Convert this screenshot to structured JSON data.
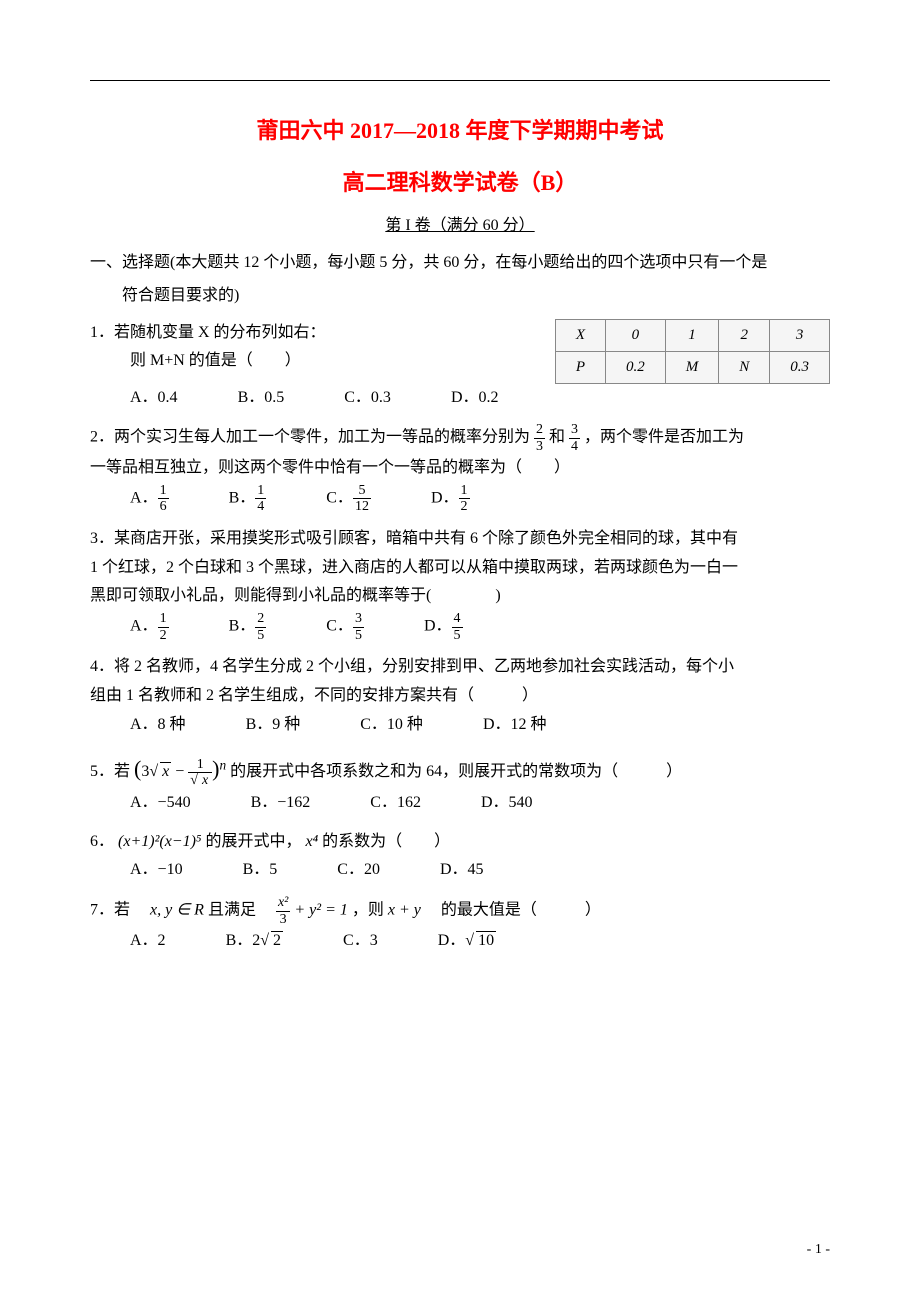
{
  "header": {
    "title": "莆田六中 2017—2018 年度下学期期中考试",
    "subtitle": "高二理科数学试卷（B）",
    "section": "第 I 卷（满分 60 分）"
  },
  "intro": {
    "line1": "一、选择题(本大题共 12 个小题，每小题 5 分，共 60 分，在每小题给出的四个选项中只有一个是",
    "line2": "符合题目要求的)"
  },
  "q1": {
    "text": "1．若随机变量 X 的分布列如右：",
    "sub": "则 M+N 的值是（　　）",
    "table": {
      "row1": [
        "X",
        "0",
        "1",
        "2",
        "3"
      ],
      "row2": [
        "P",
        "0.2",
        "M",
        "N",
        "0.3"
      ]
    },
    "opts": {
      "a": "A．0.4",
      "b": "B．0.5",
      "c": "C．0.3",
      "d": "D．0.2"
    }
  },
  "q2": {
    "text_pre": "2．两个实习生每人加工一个零件，加工为一等品的概率分别为",
    "frac1_num": "2",
    "frac1_den": "3",
    "mid": "和",
    "frac2_num": "3",
    "frac2_den": "4",
    "text_post": "，两个零件是否加工为",
    "line2": "一等品相互独立，则这两个零件中恰有一个一等品的概率为（　　）",
    "opts": {
      "a_label": "A．",
      "a_num": "1",
      "a_den": "6",
      "b_label": "B．",
      "b_num": "1",
      "b_den": "4",
      "c_label": "C．",
      "c_num": "5",
      "c_den": "12",
      "d_label": "D．",
      "d_num": "1",
      "d_den": "2"
    }
  },
  "q3": {
    "line1": "3．某商店开张，采用摸奖形式吸引顾客，暗箱中共有 6 个除了颜色外完全相同的球，其中有",
    "line2": "1 个红球，2 个白球和 3 个黑球，进入商店的人都可以从箱中摸取两球，若两球颜色为一白一",
    "line3": "黑即可领取小礼品，则能得到小礼品的概率等于(　　　　)",
    "opts": {
      "a_label": "A．",
      "a_num": "1",
      "a_den": "2",
      "b_label": "B．",
      "b_num": "2",
      "b_den": "5",
      "c_label": "C．",
      "c_num": "3",
      "c_den": "5",
      "d_label": "D．",
      "d_num": "4",
      "d_den": "5"
    }
  },
  "q4": {
    "line1": "4．将 2 名教师，4 名学生分成 2 个小组，分别安排到甲、乙两地参加社会实践活动，每个小",
    "line2": "组由 1 名教师和 2 名学生组成，不同的安排方案共有（　　　）",
    "opts": {
      "a": "A．8 种",
      "b": "B．9 种",
      "c": "C．10 种",
      "d": "D．12 种"
    }
  },
  "q5": {
    "pre": "5．若",
    "expr_open": "(3",
    "sqrt_x1": "x",
    "minus": " − ",
    "frac_num": "1",
    "sqrt_x2": "x",
    "expr_close": ")",
    "sup": "n",
    "post": "的展开式中各项系数之和为 64，则展开式的常数项为（　　　）",
    "opts": {
      "a": "A．−540",
      "b": "B．−162",
      "c": "C．162",
      "d": "D．540"
    }
  },
  "q6": {
    "pre": "6．",
    "expr": "(x+1)²(x−1)⁵",
    "mid": "的展开式中，",
    "x4": "x⁴",
    "post": "的系数为（　　）",
    "opts": {
      "a": "A．−10",
      "b": "B．5",
      "c": "C．20",
      "d": "D．45"
    }
  },
  "q7": {
    "pre": "7．若　",
    "xy": "x, y ∈ R",
    "mid": " 且满足　",
    "frac_num": "x²",
    "frac_den": "3",
    "plus": " + y² = 1",
    "then": "，则 ",
    "xpy": "x + y",
    "post": "　的最大值是（　　　）",
    "opts": {
      "a": "A．2",
      "b_label": "B．2",
      "b_sqrt": "2",
      "c": "C．3",
      "d_label": "D．",
      "d_sqrt": "10"
    }
  },
  "footer": {
    "page": "- 1 -"
  }
}
